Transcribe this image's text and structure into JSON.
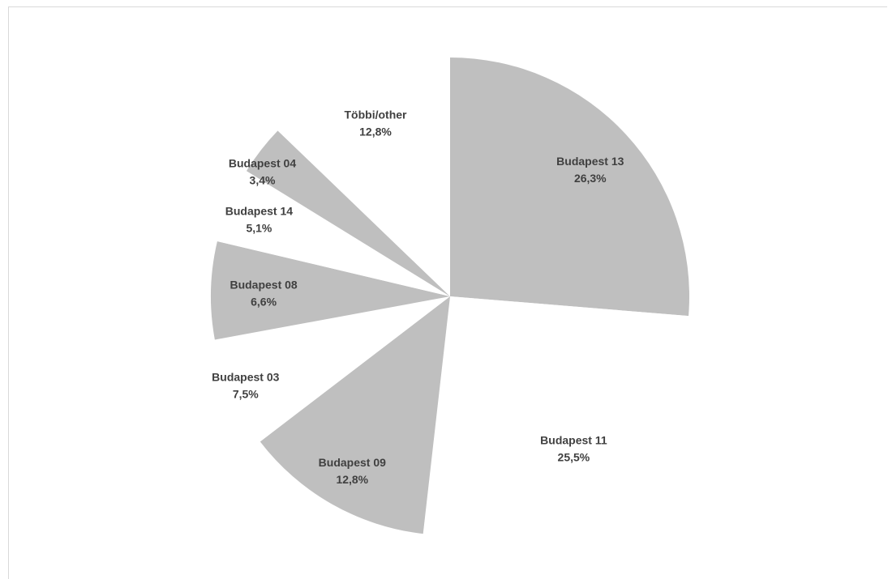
{
  "chart_data": {
    "type": "pie",
    "title": "",
    "slice_color": "#bfbfbf",
    "label_color": "#404040",
    "slices": [
      {
        "label": "Budapest 13",
        "value": 26.3,
        "value_label": "26,3%",
        "filled": true
      },
      {
        "label": "Budapest 11",
        "value": 25.5,
        "value_label": "25,5%",
        "filled": false
      },
      {
        "label": "Budapest 09",
        "value": 12.8,
        "value_label": "12,8%",
        "filled": true
      },
      {
        "label": "Budapest 03",
        "value": 7.5,
        "value_label": "7,5%",
        "filled": false
      },
      {
        "label": "Budapest 08",
        "value": 6.6,
        "value_label": "6,6%",
        "filled": true
      },
      {
        "label": "Budapest 14",
        "value": 5.1,
        "value_label": "5,1%",
        "filled": false
      },
      {
        "label": "Budapest 04",
        "value": 3.4,
        "value_label": "3,4%",
        "filled": true
      },
      {
        "label": "Többi/other",
        "value": 12.8,
        "value_label": "12,8%",
        "filled": false
      }
    ]
  }
}
